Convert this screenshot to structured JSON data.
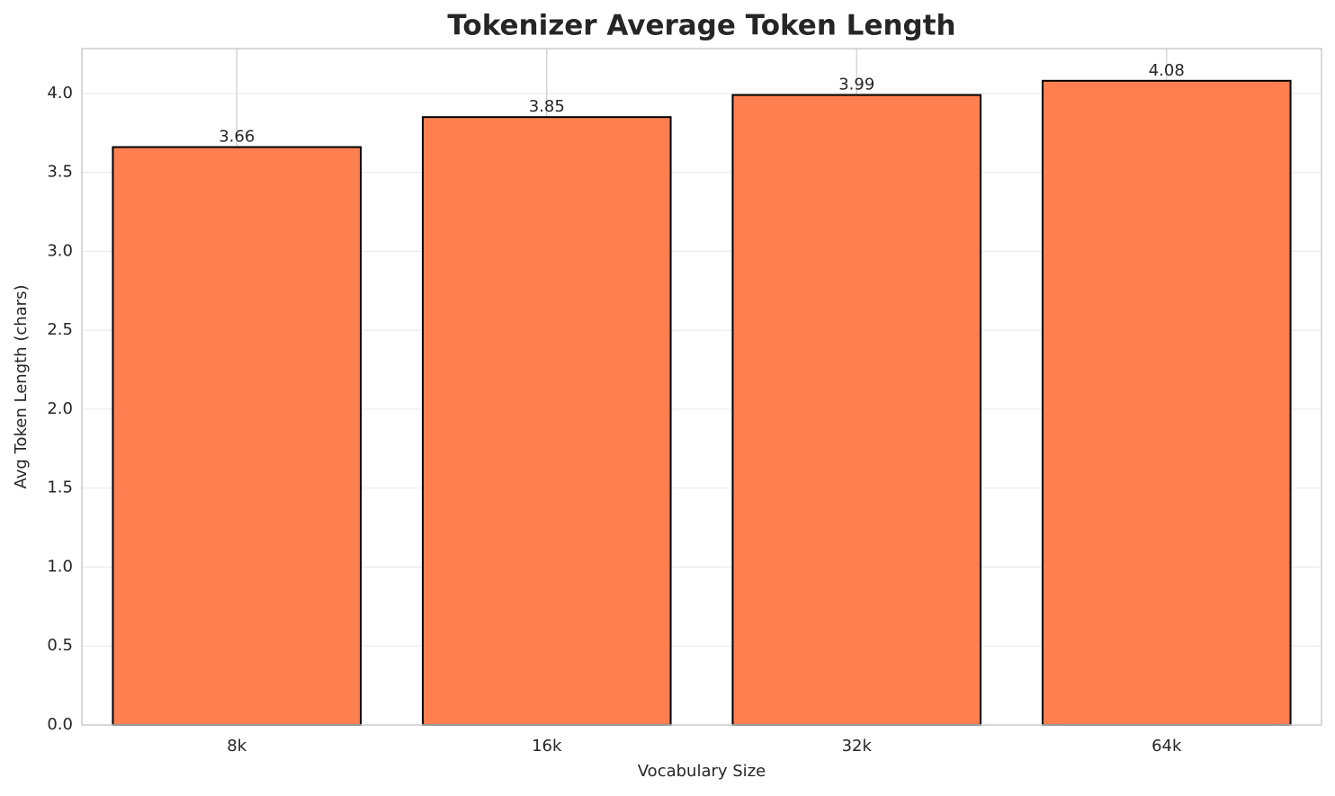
{
  "chart_data": {
    "type": "bar",
    "title": "Tokenizer Average Token Length",
    "x_label": "Vocabulary Size",
    "y_label": "Avg Token Length (chars)",
    "categories": [
      "8k",
      "16k",
      "32k",
      "64k"
    ],
    "values": [
      3.66,
      3.85,
      3.99,
      4.08
    ],
    "color": "#ff7f50",
    "edge_color": "#000000",
    "ylim": [
      0,
      4.284
    ],
    "yticks": [
      {
        "value": 0,
        "label": "0.0"
      },
      0.5,
      {
        "value": 1,
        "label": "1.0"
      },
      1.5,
      {
        "value": 2,
        "label": "2.0"
      },
      2.5,
      {
        "value": 3,
        "label": "3.0"
      },
      3.5,
      {
        "value": 4,
        "label": "4.0"
      }
    ],
    "grid": true
  }
}
